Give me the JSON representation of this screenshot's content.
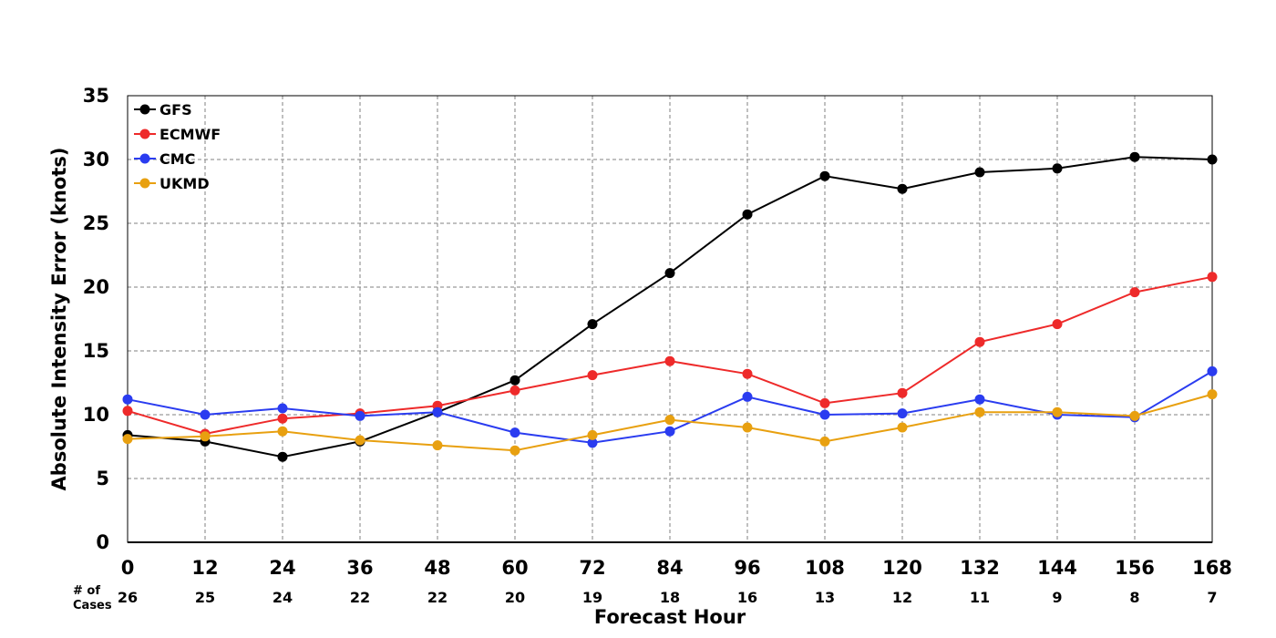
{
  "chart_data": {
    "type": "line",
    "xlabel": "Forecast Hour",
    "ylabel": "Absolute Intensity Error (knots)",
    "x": [
      0,
      12,
      24,
      36,
      48,
      60,
      72,
      84,
      96,
      108,
      120,
      132,
      144,
      156,
      168
    ],
    "xlim": [
      0,
      168
    ],
    "ylim": [
      0,
      35
    ],
    "yticks": [
      0,
      5,
      10,
      15,
      20,
      25,
      30,
      35
    ],
    "grid": true,
    "legend_position": "top-left",
    "cases_label_line1": "# of",
    "cases_label_line2": "Cases",
    "cases": [
      26,
      25,
      24,
      22,
      22,
      20,
      19,
      18,
      16,
      13,
      12,
      11,
      9,
      8,
      7
    ],
    "series": [
      {
        "name": "GFS",
        "color": "#000000",
        "values": [
          8.4,
          7.9,
          6.7,
          7.9,
          10.2,
          12.7,
          17.1,
          21.1,
          25.7,
          28.7,
          27.7,
          29.0,
          29.3,
          30.2,
          30.0
        ]
      },
      {
        "name": "ECMWF",
        "color": "#ee2a2a",
        "values": [
          10.3,
          8.5,
          9.7,
          10.1,
          10.7,
          11.9,
          13.1,
          14.2,
          13.2,
          10.9,
          11.7,
          15.7,
          17.1,
          19.6,
          20.8
        ]
      },
      {
        "name": "CMC",
        "color": "#2a3cf0",
        "values": [
          11.2,
          10.0,
          10.5,
          9.9,
          10.2,
          8.6,
          7.8,
          8.7,
          11.4,
          10.0,
          10.1,
          11.2,
          10.0,
          9.8,
          13.4
        ]
      },
      {
        "name": "UKMD",
        "color": "#e8a010",
        "values": [
          8.1,
          8.3,
          8.7,
          8.0,
          7.6,
          7.2,
          8.4,
          9.6,
          9.0,
          7.9,
          9.0,
          10.2,
          10.2,
          9.9,
          11.6
        ]
      }
    ]
  }
}
